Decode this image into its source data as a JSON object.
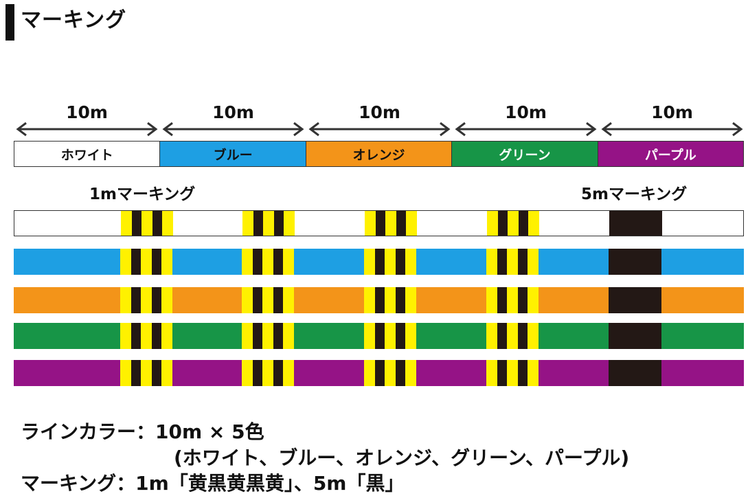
{
  "title": "マーキング",
  "segments": [
    {
      "length": "10m",
      "name": "ホワイト",
      "color": "#ffffff",
      "text_color": "#111111"
    },
    {
      "length": "10m",
      "name": "ブルー",
      "color": "#1e9fe3",
      "text_color": "#111111"
    },
    {
      "length": "10m",
      "name": "オレンジ",
      "color": "#f39419",
      "text_color": "#111111"
    },
    {
      "length": "10m",
      "name": "グリーン",
      "color": "#179547",
      "text_color": "#ffffff"
    },
    {
      "length": "10m",
      "name": "パープル",
      "color": "#951386",
      "text_color": "#ffffff"
    }
  ],
  "marking_labels": {
    "one_m": "1mマーキング",
    "five_m": "5mマーキング"
  },
  "marking_colors": {
    "yellow": "#fff100",
    "black": "#231815"
  },
  "footer": {
    "line1": "ラインカラー：10m × 5色",
    "line2": "(ホワイト、ブルー、オレンジ、グリーン、パープル)",
    "line3": "マーキング：1m「黄黒黄黒黄」、5m「黒」"
  }
}
